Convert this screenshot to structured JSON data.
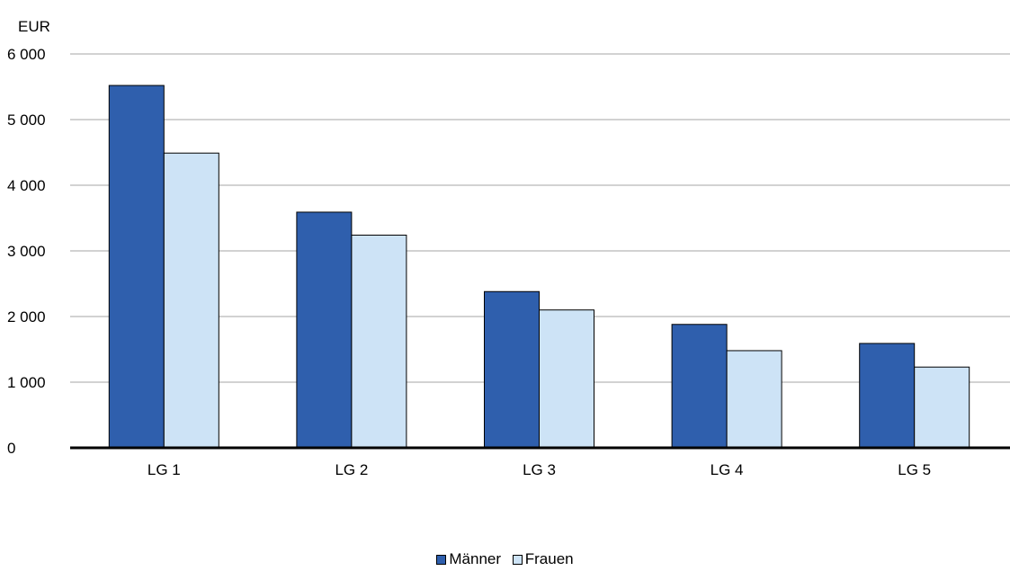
{
  "chart_data": {
    "type": "bar",
    "unit_label": "EUR",
    "categories": [
      "LG 1",
      "LG 2",
      "LG 3",
      "LG 4",
      "LG 5"
    ],
    "series": [
      {
        "name": "Männer",
        "color": "#2f5fad",
        "values": [
          5520,
          3590,
          2380,
          1880,
          1590
        ]
      },
      {
        "name": "Frauen",
        "color": "#cde3f6",
        "values": [
          4490,
          3240,
          2100,
          1480,
          1230
        ]
      }
    ],
    "y_ticks": [
      "0",
      "1 000",
      "2 000",
      "3 000",
      "4 000",
      "5 000",
      "6 000"
    ],
    "ylim": [
      0,
      6000
    ],
    "grid": true,
    "legend_position": "bottom-center"
  }
}
